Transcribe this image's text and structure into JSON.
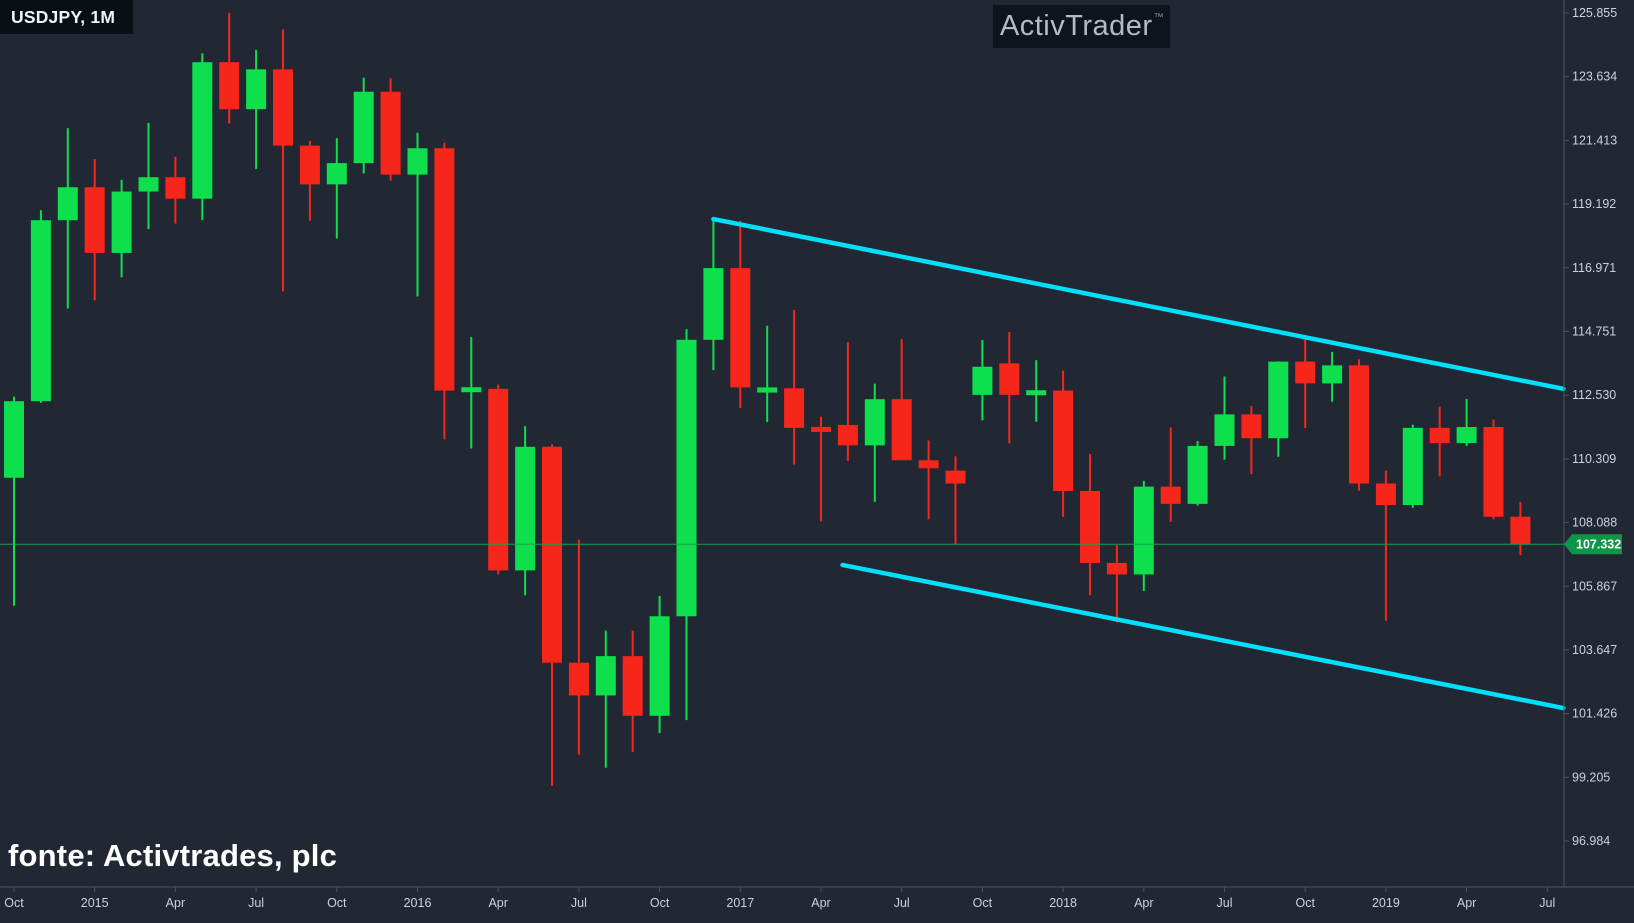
{
  "window": {
    "symbol_label": "USDJPY, 1M"
  },
  "watermark": {
    "brand": "ActivTrader",
    "tm": "™"
  },
  "source_caption": "fonte: Activtrades, plc",
  "colors": {
    "background": "#212834",
    "up_candle": "#0ddf4d",
    "down_candle": "#f7261b",
    "channel_line": "#00dffb",
    "price_line": "#12a24e",
    "badge_bg": "#0e9648",
    "badge_text": "#ffffff",
    "axis_line": "#4e545e",
    "axis_text": "#ccd1da"
  },
  "chart_data": {
    "type": "candlestick",
    "symbol": "USDJPY",
    "timeframe": "1M",
    "title": "USDJPY, 1M",
    "grid": "off",
    "price_axis": {
      "side": "right",
      "ticks": [
        "125.855",
        "123.634",
        "121.413",
        "119.192",
        "116.971",
        "114.751",
        "112.530",
        "110.309",
        "108.088",
        "105.867",
        "103.647",
        "101.426",
        "99.205",
        "96.984"
      ]
    },
    "time_axis": {
      "ticks": [
        {
          "m": 0,
          "label": "Oct"
        },
        {
          "m": 3,
          "label": "2015"
        },
        {
          "m": 6,
          "label": "Apr"
        },
        {
          "m": 9,
          "label": "Jul"
        },
        {
          "m": 12,
          "label": "Oct"
        },
        {
          "m": 15,
          "label": "2016"
        },
        {
          "m": 18,
          "label": "Apr"
        },
        {
          "m": 21,
          "label": "Jul"
        },
        {
          "m": 24,
          "label": "Oct"
        },
        {
          "m": 27,
          "label": "2017"
        },
        {
          "m": 30,
          "label": "Apr"
        },
        {
          "m": 33,
          "label": "Jul"
        },
        {
          "m": 36,
          "label": "Oct"
        },
        {
          "m": 39,
          "label": "2018"
        },
        {
          "m": 42,
          "label": "Apr"
        },
        {
          "m": 45,
          "label": "Jul"
        },
        {
          "m": 48,
          "label": "Oct"
        },
        {
          "m": 51,
          "label": "2019"
        },
        {
          "m": 54,
          "label": "Apr"
        },
        {
          "m": 57,
          "label": "Jul"
        }
      ]
    },
    "current_price": {
      "value": 107.332,
      "label": "107.332"
    },
    "drawings": {
      "channel_upper": {
        "m1": 26.0,
        "p1": 118.67,
        "m2": 57.6,
        "p2": 112.75
      },
      "channel_lower": {
        "m1": 30.8,
        "p1": 106.61,
        "m2": 57.6,
        "p2": 101.62
      }
    },
    "candles": [
      {
        "t": "2014-10",
        "o": 109.65,
        "h": 112.48,
        "l": 105.19,
        "c": 112.32
      },
      {
        "t": "2014-11",
        "o": 112.32,
        "h": 118.98,
        "l": 112.26,
        "c": 118.63
      },
      {
        "t": "2014-12",
        "o": 118.63,
        "h": 121.84,
        "l": 115.55,
        "c": 119.78
      },
      {
        "t": "2015-01",
        "o": 119.78,
        "h": 120.76,
        "l": 115.84,
        "c": 117.49
      },
      {
        "t": "2015-02",
        "o": 117.49,
        "h": 120.04,
        "l": 116.64,
        "c": 119.63
      },
      {
        "t": "2015-03",
        "o": 119.63,
        "h": 122.02,
        "l": 118.32,
        "c": 120.13
      },
      {
        "t": "2015-04",
        "o": 120.13,
        "h": 120.84,
        "l": 118.51,
        "c": 119.38
      },
      {
        "t": "2015-05",
        "o": 119.38,
        "h": 124.45,
        "l": 118.63,
        "c": 124.14
      },
      {
        "t": "2015-06",
        "o": 124.14,
        "h": 125.855,
        "l": 122.0,
        "c": 122.5
      },
      {
        "t": "2015-07",
        "o": 122.5,
        "h": 124.57,
        "l": 120.41,
        "c": 123.89
      },
      {
        "t": "2015-08",
        "o": 123.89,
        "h": 125.28,
        "l": 116.15,
        "c": 121.23
      },
      {
        "t": "2015-09",
        "o": 121.23,
        "h": 121.4,
        "l": 118.61,
        "c": 119.88
      },
      {
        "t": "2015-10",
        "o": 119.88,
        "h": 121.49,
        "l": 117.99,
        "c": 120.62
      },
      {
        "t": "2015-11",
        "o": 120.62,
        "h": 123.6,
        "l": 120.26,
        "c": 123.11
      },
      {
        "t": "2015-12",
        "o": 123.11,
        "h": 123.58,
        "l": 120.01,
        "c": 120.22
      },
      {
        "t": "2016-01",
        "o": 120.22,
        "h": 121.68,
        "l": 115.97,
        "c": 121.14
      },
      {
        "t": "2016-02",
        "o": 121.14,
        "h": 121.33,
        "l": 110.99,
        "c": 112.69
      },
      {
        "t": "2016-03",
        "o": 112.69,
        "h": 114.56,
        "l": 110.67,
        "c": 112.75
      },
      {
        "t": "2016-04",
        "o": 112.75,
        "h": 112.9,
        "l": 106.28,
        "c": 106.42
      },
      {
        "t": "2016-05",
        "o": 106.42,
        "h": 111.45,
        "l": 105.55,
        "c": 110.73
      },
      {
        "t": "2016-06",
        "o": 110.73,
        "h": 110.82,
        "l": 98.9,
        "c": 103.2
      },
      {
        "t": "2016-07",
        "o": 103.2,
        "h": 107.49,
        "l": 99.99,
        "c": 102.06
      },
      {
        "t": "2016-08",
        "o": 102.06,
        "h": 104.32,
        "l": 99.54,
        "c": 103.43
      },
      {
        "t": "2016-09",
        "o": 103.43,
        "h": 104.32,
        "l": 100.09,
        "c": 101.35
      },
      {
        "t": "2016-10",
        "o": 101.35,
        "h": 105.53,
        "l": 100.75,
        "c": 104.82
      },
      {
        "t": "2016-11",
        "o": 104.82,
        "h": 114.83,
        "l": 101.2,
        "c": 114.46
      },
      {
        "t": "2016-12",
        "o": 114.46,
        "h": 118.66,
        "l": 113.4,
        "c": 116.96
      },
      {
        "t": "2017-01",
        "o": 116.96,
        "h": 118.61,
        "l": 112.08,
        "c": 112.8
      },
      {
        "t": "2017-02",
        "o": 112.62,
        "h": 114.95,
        "l": 111.59,
        "c": 112.8
      },
      {
        "t": "2017-03",
        "o": 112.77,
        "h": 115.5,
        "l": 110.11,
        "c": 111.39
      },
      {
        "t": "2017-04",
        "o": 111.39,
        "h": 111.78,
        "l": 108.13,
        "c": 111.28
      },
      {
        "t": "2017-05",
        "o": 111.49,
        "h": 114.38,
        "l": 110.24,
        "c": 110.78
      },
      {
        "t": "2017-06",
        "o": 110.78,
        "h": 112.93,
        "l": 108.81,
        "c": 112.39
      },
      {
        "t": "2017-07",
        "o": 112.39,
        "h": 114.49,
        "l": 110.62,
        "c": 110.26
      },
      {
        "t": "2017-08",
        "o": 110.26,
        "h": 110.95,
        "l": 108.2,
        "c": 109.98
      },
      {
        "t": "2017-09",
        "o": 109.9,
        "h": 110.4,
        "l": 107.33,
        "c": 109.45
      },
      {
        "t": "2017-10",
        "o": 112.54,
        "h": 114.45,
        "l": 111.65,
        "c": 113.52
      },
      {
        "t": "2017-11",
        "o": 113.64,
        "h": 114.73,
        "l": 110.85,
        "c": 112.54
      },
      {
        "t": "2017-12",
        "o": 112.54,
        "h": 113.75,
        "l": 111.6,
        "c": 112.69
      },
      {
        "t": "2018-01",
        "o": 112.69,
        "h": 113.39,
        "l": 108.28,
        "c": 109.19
      },
      {
        "t": "2018-02",
        "o": 109.19,
        "h": 110.48,
        "l": 105.55,
        "c": 106.68
      },
      {
        "t": "2018-03",
        "o": 106.68,
        "h": 107.3,
        "l": 104.6,
        "c": 106.28
      },
      {
        "t": "2018-04",
        "o": 106.28,
        "h": 109.54,
        "l": 105.7,
        "c": 109.34
      },
      {
        "t": "2018-05",
        "o": 109.34,
        "h": 111.4,
        "l": 108.11,
        "c": 108.74
      },
      {
        "t": "2018-06",
        "o": 108.74,
        "h": 110.93,
        "l": 108.68,
        "c": 110.76
      },
      {
        "t": "2018-07",
        "o": 110.76,
        "h": 113.18,
        "l": 110.28,
        "c": 111.86
      },
      {
        "t": "2018-08",
        "o": 111.86,
        "h": 112.15,
        "l": 109.77,
        "c": 111.03
      },
      {
        "t": "2018-09",
        "o": 111.03,
        "h": 113.71,
        "l": 110.38,
        "c": 113.7
      },
      {
        "t": "2018-10",
        "o": 113.7,
        "h": 114.55,
        "l": 111.38,
        "c": 112.94
      },
      {
        "t": "2018-11",
        "o": 112.94,
        "h": 114.04,
        "l": 112.3,
        "c": 113.57
      },
      {
        "t": "2018-12",
        "o": 113.57,
        "h": 113.78,
        "l": 109.2,
        "c": 109.45
      },
      {
        "t": "2019-01",
        "o": 109.45,
        "h": 109.9,
        "l": 104.66,
        "c": 108.7
      },
      {
        "t": "2019-02",
        "o": 108.7,
        "h": 111.5,
        "l": 108.6,
        "c": 111.39
      },
      {
        "t": "2019-03",
        "o": 111.39,
        "h": 112.13,
        "l": 109.7,
        "c": 110.86
      },
      {
        "t": "2019-04",
        "o": 110.86,
        "h": 112.4,
        "l": 110.76,
        "c": 111.42
      },
      {
        "t": "2019-05",
        "o": 111.42,
        "h": 111.68,
        "l": 108.2,
        "c": 108.29
      },
      {
        "t": "2019-06",
        "o": 108.29,
        "h": 108.8,
        "l": 106.95,
        "c": 107.332
      }
    ]
  }
}
